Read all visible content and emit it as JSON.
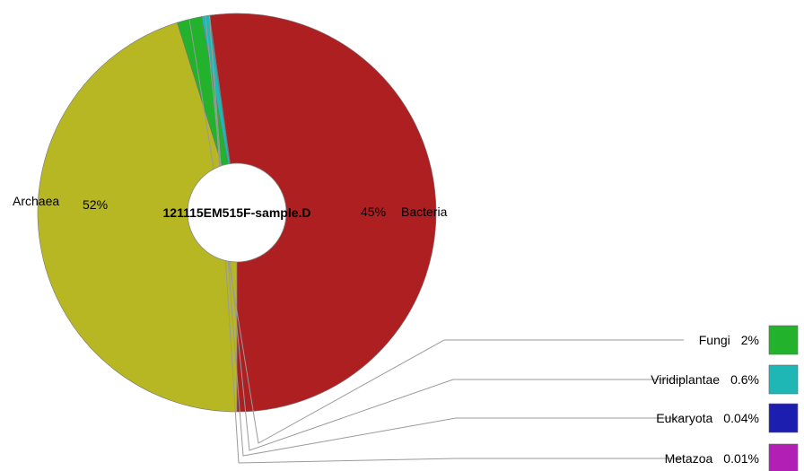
{
  "chart_data": {
    "type": "pie",
    "center_label": "121115EM515F-sample.D",
    "slices": [
      {
        "name": "Archaea",
        "value": 52,
        "display": "52%",
        "color": "#ae1f21"
      },
      {
        "name": "Bacteria",
        "value": 45,
        "display": "45%",
        "color": "#b7b723"
      },
      {
        "name": "Fungi",
        "value": 2,
        "display": "2%",
        "color": "#22b22b"
      },
      {
        "name": "Viridiplantae",
        "value": 0.6,
        "display": "0.6%",
        "color": "#1fb7b5"
      },
      {
        "name": "Eukaryota",
        "value": 0.04,
        "display": "0.04%",
        "color": "#1c1eb0"
      },
      {
        "name": "Metazoa",
        "value": 0.01,
        "display": "0.01%",
        "color": "#b21fb5"
      }
    ],
    "legend_placement": "bottom-right",
    "donut": true
  }
}
